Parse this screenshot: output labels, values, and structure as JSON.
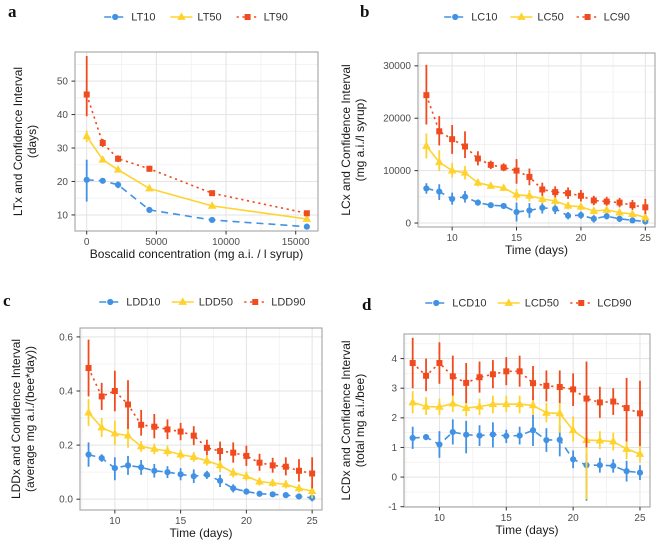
{
  "figure": {
    "background_color": "#ffffff",
    "grid_major_color": "#E3E3E3",
    "grid_minor_color": "#F0F0F0",
    "panel_border_color": "#9B9B9B",
    "tick_color": "#333333",
    "tick_label_color": "#4D4D4D",
    "axis_label_color": "#1A1A1A",
    "legend_text_color": "#333333"
  },
  "chart_data": [
    {
      "panel_label": "a",
      "type": "line",
      "title": "",
      "xlabel": "Boscalid concentration (mg a.i. / l syrup)",
      "ylabel_lines": [
        "LTx and Confidence Interval",
        "(days)"
      ],
      "legend_position": "top",
      "grid": true,
      "xlim": [
        -840,
        16600
      ],
      "ylim": [
        5.2,
        58.7
      ],
      "xtick_values": [
        0,
        5000,
        10000,
        15000
      ],
      "xtick_labels": [
        "0",
        "5000",
        "10000",
        "15000"
      ],
      "ytick_values": [
        10,
        20,
        30,
        40,
        50
      ],
      "ytick_labels": [
        "10",
        "20",
        "30",
        "40",
        "50"
      ],
      "x": [
        0,
        1150,
        2250,
        4500,
        9000,
        15800
      ],
      "series": [
        {
          "name": "LT10",
          "color": "#4292E4",
          "marker": "circle",
          "linestyle": "dashed",
          "y": [
            20.5,
            20.2,
            19.0,
            11.5,
            8.5,
            6.5
          ],
          "ci_low": [
            14.0,
            19.5,
            18.0,
            10.6,
            8.0,
            6.1
          ],
          "ci_high": [
            26.5,
            21.0,
            20.0,
            12.4,
            9.0,
            6.9
          ]
        },
        {
          "name": "LT50",
          "color": "#FFD32F",
          "marker": "triangle",
          "linestyle": "solid",
          "y": [
            33.5,
            26.5,
            23.5,
            17.9,
            12.7,
            8.8
          ],
          "ci_low": [
            31.8,
            25.7,
            22.7,
            17.2,
            12.1,
            8.3
          ],
          "ci_high": [
            35.2,
            27.3,
            24.3,
            18.6,
            13.3,
            9.3
          ]
        },
        {
          "name": "LT90",
          "color": "#F04B1E",
          "marker": "square",
          "linestyle": "dotted",
          "y": [
            46.0,
            31.5,
            26.8,
            23.8,
            16.5,
            10.5
          ],
          "ci_low": [
            39.5,
            30.3,
            25.8,
            22.9,
            15.8,
            9.9
          ],
          "ci_high": [
            57.5,
            32.7,
            27.8,
            24.7,
            17.2,
            11.1
          ]
        }
      ]
    },
    {
      "panel_label": "b",
      "type": "line",
      "title": "",
      "xlabel": "Time (days)",
      "ylabel_lines": [
        "LCx and Confidence Interval",
        "(mg a.i./l syrup)"
      ],
      "legend_position": "top",
      "grid": true,
      "xlim": [
        7.35,
        25.75
      ],
      "ylim": [
        -760,
        32450
      ],
      "xtick_values": [
        10,
        15,
        20,
        25
      ],
      "xtick_labels": [
        "10",
        "15",
        "20",
        "25"
      ],
      "ytick_values": [
        0,
        10000,
        20000,
        30000
      ],
      "ytick_labels": [
        "0",
        "10000",
        "20000",
        "30000"
      ],
      "x": [
        8,
        9,
        10,
        11,
        12,
        13,
        14,
        15,
        16,
        17,
        18,
        19,
        20,
        21,
        22,
        23,
        24,
        25
      ],
      "series": [
        {
          "name": "LC10",
          "color": "#4292E4",
          "marker": "circle",
          "linestyle": "dashed",
          "y": [
            6600,
            6000,
            4600,
            5000,
            3900,
            3400,
            3250,
            2100,
            2400,
            2900,
            2700,
            1400,
            1500,
            800,
            1300,
            800,
            500,
            300
          ],
          "ci_low": [
            5600,
            4400,
            3500,
            3900,
            3300,
            2900,
            2750,
            300,
            1000,
            1800,
            1700,
            700,
            800,
            100,
            700,
            200,
            0,
            -300
          ],
          "ci_high": [
            7600,
            7400,
            5800,
            6100,
            4500,
            3900,
            3750,
            3900,
            3800,
            4000,
            3700,
            2100,
            2200,
            1500,
            1900,
            1400,
            1000,
            900
          ]
        },
        {
          "name": "LC50",
          "color": "#FFD32F",
          "marker": "triangle",
          "linestyle": "solid",
          "y": [
            14700,
            11600,
            10000,
            9600,
            7700,
            7100,
            6700,
            5400,
            5200,
            4600,
            4200,
            3300,
            3100,
            2300,
            2500,
            2000,
            1700,
            1100
          ],
          "ci_low": [
            12300,
            9900,
            8700,
            8300,
            7000,
            6500,
            6100,
            4300,
            4100,
            3700,
            3400,
            2600,
            2400,
            1600,
            1900,
            1400,
            1100,
            200
          ],
          "ci_high": [
            17100,
            13900,
            11500,
            10900,
            8400,
            7700,
            7300,
            6500,
            6300,
            5500,
            5000,
            4000,
            3800,
            3000,
            3100,
            2600,
            2300,
            2000
          ]
        },
        {
          "name": "LC90",
          "color": "#F04B1E",
          "marker": "square",
          "linestyle": "dotted",
          "y": [
            24400,
            17500,
            16000,
            14600,
            12300,
            11100,
            10600,
            10000,
            8800,
            6400,
            5900,
            5700,
            5200,
            4300,
            4100,
            3900,
            3400,
            3000
          ],
          "ci_low": [
            18800,
            14800,
            13200,
            12400,
            11000,
            10300,
            9900,
            7500,
            7200,
            5200,
            4900,
            4600,
            4100,
            3400,
            3300,
            3000,
            2500,
            1700
          ],
          "ci_high": [
            30200,
            20400,
            18700,
            17500,
            13700,
            11900,
            11400,
            12200,
            10400,
            7700,
            7000,
            6800,
            6300,
            5200,
            5000,
            4800,
            4400,
            4600
          ]
        }
      ]
    },
    {
      "panel_label": "c",
      "type": "line",
      "title": "",
      "xlabel": "Time (days)",
      "ylabel_lines": [
        "LDDx and Confidence Interval",
        "(average mg a.i./(bee*day))"
      ],
      "legend_position": "top",
      "grid": true,
      "xlim": [
        7.35,
        25.75
      ],
      "ylim": [
        -0.04,
        0.633
      ],
      "xtick_values": [
        10,
        15,
        20,
        25
      ],
      "xtick_labels": [
        "10",
        "15",
        "20",
        "25"
      ],
      "ytick_values": [
        0.0,
        0.2,
        0.4,
        0.6
      ],
      "ytick_labels": [
        "0.0",
        "0.2",
        "0.4",
        "0.6"
      ],
      "x": [
        8,
        9,
        10,
        11,
        12,
        13,
        14,
        15,
        16,
        17,
        18,
        19,
        20,
        21,
        22,
        23,
        24,
        25
      ],
      "series": [
        {
          "name": "LDD10",
          "color": "#4292E4",
          "marker": "circle",
          "linestyle": "dashed",
          "y": [
            0.165,
            0.152,
            0.115,
            0.125,
            0.118,
            0.105,
            0.1,
            0.092,
            0.085,
            0.09,
            0.068,
            0.04,
            0.028,
            0.02,
            0.018,
            0.015,
            0.01,
            0.005
          ],
          "ci_low": [
            0.12,
            0.138,
            0.07,
            0.09,
            0.09,
            0.08,
            0.078,
            0.07,
            0.06,
            0.075,
            0.045,
            0.025,
            0.017,
            0.012,
            0.01,
            0.007,
            0.0,
            -0.008
          ],
          "ci_high": [
            0.21,
            0.166,
            0.155,
            0.16,
            0.145,
            0.13,
            0.122,
            0.115,
            0.11,
            0.105,
            0.09,
            0.055,
            0.04,
            0.028,
            0.026,
            0.023,
            0.02,
            0.018
          ]
        },
        {
          "name": "LDD50",
          "color": "#FFD32F",
          "marker": "triangle",
          "linestyle": "solid",
          "y": [
            0.32,
            0.265,
            0.243,
            0.235,
            0.195,
            0.186,
            0.178,
            0.165,
            0.156,
            0.142,
            0.125,
            0.098,
            0.085,
            0.065,
            0.06,
            0.055,
            0.04,
            0.03
          ],
          "ci_low": [
            0.27,
            0.23,
            0.2,
            0.19,
            0.175,
            0.166,
            0.158,
            0.147,
            0.138,
            0.124,
            0.1,
            0.08,
            0.068,
            0.05,
            0.046,
            0.04,
            0.025,
            0.003
          ],
          "ci_high": [
            0.37,
            0.3,
            0.29,
            0.28,
            0.215,
            0.206,
            0.198,
            0.183,
            0.174,
            0.16,
            0.15,
            0.116,
            0.102,
            0.08,
            0.074,
            0.07,
            0.055,
            0.057
          ]
        },
        {
          "name": "LDD90",
          "color": "#F04B1E",
          "marker": "square",
          "linestyle": "dotted",
          "y": [
            0.485,
            0.38,
            0.4,
            0.35,
            0.275,
            0.268,
            0.258,
            0.25,
            0.235,
            0.19,
            0.178,
            0.172,
            0.16,
            0.135,
            0.125,
            0.12,
            0.105,
            0.095
          ],
          "ci_low": [
            0.38,
            0.33,
            0.325,
            0.26,
            0.235,
            0.225,
            0.222,
            0.218,
            0.2,
            0.162,
            0.143,
            0.135,
            0.123,
            0.105,
            0.098,
            0.088,
            0.065,
            0.04
          ],
          "ci_high": [
            0.59,
            0.43,
            0.475,
            0.44,
            0.33,
            0.315,
            0.295,
            0.282,
            0.27,
            0.22,
            0.213,
            0.21,
            0.198,
            0.168,
            0.153,
            0.155,
            0.148,
            0.155
          ]
        }
      ]
    },
    {
      "panel_label": "d",
      "type": "line",
      "title": "",
      "xlabel": "Time (days)",
      "ylabel_lines": [
        "LCDx and Confidence Interval",
        "(total mg a.i./bee)"
      ],
      "legend_position": "top",
      "grid": true,
      "xlim": [
        7.35,
        25.75
      ],
      "ylim": [
        -1.01,
        4.83
      ],
      "xtick_values": [
        10,
        15,
        20,
        25
      ],
      "xtick_labels": [
        "10",
        "15",
        "20",
        "25"
      ],
      "ytick_values": [
        -1,
        0,
        1,
        2,
        3,
        4
      ],
      "ytick_labels": [
        "-1",
        "0",
        "1",
        "2",
        "3",
        "4"
      ],
      "x": [
        8,
        9,
        10,
        11,
        12,
        13,
        14,
        15,
        16,
        17,
        18,
        19,
        20,
        21,
        22,
        23,
        24,
        25
      ],
      "series": [
        {
          "name": "LCD10",
          "color": "#4292E4",
          "marker": "circle",
          "linestyle": "dashed",
          "y": [
            1.32,
            1.35,
            1.1,
            1.52,
            1.43,
            1.4,
            1.44,
            1.39,
            1.4,
            1.58,
            1.25,
            1.26,
            0.6,
            0.4,
            0.4,
            0.38,
            0.2,
            0.15
          ],
          "ci_low": [
            0.95,
            1.25,
            0.65,
            1.1,
            0.8,
            1.05,
            1.0,
            1.15,
            1.1,
            1.05,
            0.85,
            0.7,
            0.3,
            -0.8,
            0.15,
            0.15,
            -0.15,
            -0.1
          ],
          "ci_high": [
            1.7,
            1.45,
            1.55,
            1.95,
            1.9,
            1.75,
            1.85,
            1.6,
            1.7,
            2.1,
            1.65,
            1.75,
            0.9,
            0.8,
            0.65,
            0.6,
            0.55,
            0.4
          ]
        },
        {
          "name": "LCD50",
          "color": "#FFD32F",
          "marker": "triangle",
          "linestyle": "solid",
          "y": [
            2.52,
            2.38,
            2.37,
            2.48,
            2.33,
            2.38,
            2.46,
            2.46,
            2.46,
            2.42,
            2.17,
            2.15,
            1.58,
            1.25,
            1.23,
            1.2,
            0.95,
            0.78
          ],
          "ci_low": [
            2.15,
            2.1,
            2.1,
            2.2,
            2.05,
            2.1,
            2.15,
            2.2,
            2.15,
            2.1,
            1.85,
            1.5,
            1.2,
            -0.75,
            0.95,
            0.9,
            0.6,
            0.5
          ],
          "ci_high": [
            2.9,
            2.7,
            2.65,
            2.8,
            2.6,
            2.65,
            2.75,
            2.75,
            2.75,
            2.7,
            2.5,
            2.5,
            2.05,
            1.55,
            1.55,
            1.5,
            1.3,
            1.1
          ]
        },
        {
          "name": "LCD90",
          "color": "#F04B1E",
          "marker": "square",
          "linestyle": "dotted",
          "y": [
            3.85,
            3.42,
            3.85,
            3.4,
            3.18,
            3.37,
            3.47,
            3.57,
            3.57,
            3.17,
            3.08,
            3.04,
            2.96,
            2.65,
            2.52,
            2.55,
            2.33,
            2.15
          ],
          "ci_low": [
            3.0,
            2.9,
            3.15,
            2.75,
            2.5,
            2.85,
            3.0,
            3.1,
            3.05,
            2.6,
            2.55,
            2.5,
            2.4,
            1.0,
            2.0,
            2.1,
            1.2,
            1.05
          ],
          "ci_high": [
            4.7,
            4.0,
            4.55,
            4.1,
            3.85,
            3.9,
            3.95,
            4.05,
            4.1,
            3.75,
            3.6,
            3.6,
            3.5,
            3.9,
            3.05,
            3.0,
            3.35,
            3.25
          ]
        }
      ]
    }
  ]
}
